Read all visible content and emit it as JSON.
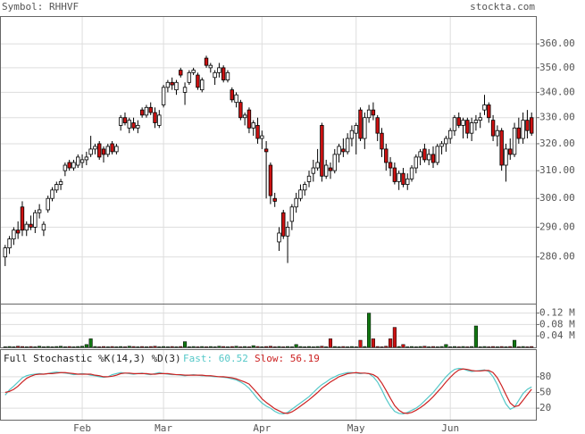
{
  "chart_data": {
    "type": "candlestick",
    "title": "Symbol: RHHVF",
    "source": "stockta.com",
    "log_scale": true,
    "grid": true,
    "up_color": "#ffffff",
    "down_color": "#cc1111",
    "xlim": [
      -1,
      124
    ],
    "xticks": [
      {
        "value": 18,
        "label": "Feb"
      },
      {
        "value": 37,
        "label": "Mar"
      },
      {
        "value": 60,
        "label": "Apr"
      },
      {
        "value": 82,
        "label": "May"
      },
      {
        "value": 104,
        "label": "Jun"
      }
    ],
    "ylim": [
      265,
      372
    ],
    "yticks": [
      {
        "value": 280,
        "label": "280.00"
      },
      {
        "value": 290,
        "label": "290.00"
      },
      {
        "value": 300,
        "label": "300.00"
      },
      {
        "value": 310,
        "label": "310.00"
      },
      {
        "value": 320,
        "label": "320.00"
      },
      {
        "value": 330,
        "label": "330.00"
      },
      {
        "value": 340,
        "label": "340.00"
      },
      {
        "value": 350,
        "label": "350.00"
      },
      {
        "value": 360,
        "label": "360.00"
      }
    ],
    "ohlc": [
      [
        280,
        284,
        277,
        283
      ],
      [
        283,
        287,
        281,
        286
      ],
      [
        286,
        290,
        284,
        289
      ],
      [
        289,
        292,
        286,
        288
      ],
      [
        297,
        299,
        287,
        289
      ],
      [
        289,
        292,
        287,
        291
      ],
      [
        291,
        294,
        289,
        290
      ],
      [
        290,
        296,
        288,
        295
      ],
      [
        295,
        298,
        293,
        296
      ],
      [
        289,
        292,
        287,
        291
      ],
      [
        296,
        301,
        295,
        300
      ],
      [
        300,
        304,
        299,
        303
      ],
      [
        303,
        306,
        302,
        305
      ],
      [
        305,
        307,
        303,
        306
      ],
      [
        310,
        313,
        308,
        312
      ],
      [
        313,
        314,
        310,
        311
      ],
      [
        311,
        314,
        310,
        313
      ],
      [
        312,
        316,
        311,
        315
      ],
      [
        313,
        316,
        311,
        314
      ],
      [
        314,
        317,
        312,
        315
      ],
      [
        316,
        323,
        315,
        318
      ],
      [
        318,
        320,
        316,
        319
      ],
      [
        320,
        321,
        314,
        315
      ],
      [
        318,
        319,
        313,
        316
      ],
      [
        316,
        320,
        315,
        319
      ],
      [
        320,
        321,
        316,
        317
      ],
      [
        317,
        320,
        316,
        319
      ],
      [
        327,
        331,
        325,
        330
      ],
      [
        330,
        332,
        327,
        328
      ],
      [
        326,
        330,
        324,
        329
      ],
      [
        328,
        330,
        325,
        326
      ],
      [
        326,
        329,
        324,
        327
      ],
      [
        333,
        334,
        330,
        331
      ],
      [
        331,
        335,
        330,
        334
      ],
      [
        334,
        336,
        331,
        332
      ],
      [
        332,
        334,
        326,
        328
      ],
      [
        327,
        333,
        326,
        331
      ],
      [
        335,
        343,
        334,
        342
      ],
      [
        342,
        345,
        340,
        344
      ],
      [
        344,
        346,
        341,
        343
      ],
      [
        341,
        345,
        339,
        344
      ],
      [
        349,
        350,
        346,
        347
      ],
      [
        340,
        344,
        335,
        342
      ],
      [
        344,
        349,
        343,
        348
      ],
      [
        348,
        350,
        347,
        349
      ],
      [
        347,
        348,
        341,
        342
      ],
      [
        341,
        346,
        340,
        345
      ],
      [
        354,
        355,
        350,
        351
      ],
      [
        350,
        352,
        348,
        351
      ],
      [
        346,
        349,
        343,
        348
      ],
      [
        348,
        352,
        346,
        350
      ],
      [
        350,
        351,
        344,
        345
      ],
      [
        345,
        349,
        344,
        348
      ],
      [
        341,
        342,
        336,
        337
      ],
      [
        336,
        340,
        334,
        339
      ],
      [
        336,
        337,
        329,
        330
      ],
      [
        330,
        332,
        327,
        331
      ],
      [
        333,
        334,
        324,
        326
      ],
      [
        326,
        329,
        323,
        328
      ],
      [
        327,
        330,
        320,
        322
      ],
      [
        322,
        325,
        318,
        323
      ],
      [
        318,
        321,
        300,
        317
      ],
      [
        312,
        313,
        298,
        301
      ],
      [
        300,
        302,
        297,
        299
      ],
      [
        285,
        290,
        282,
        288
      ],
      [
        295,
        296,
        286,
        287
      ],
      [
        287,
        292,
        278,
        290
      ],
      [
        292,
        298,
        289,
        297
      ],
      [
        297,
        302,
        295,
        300
      ],
      [
        300,
        305,
        299,
        303
      ],
      [
        303,
        306,
        301,
        305
      ],
      [
        306,
        310,
        304,
        308
      ],
      [
        309,
        314,
        306,
        311
      ],
      [
        311,
        318,
        310,
        313
      ],
      [
        327,
        328,
        306,
        308
      ],
      [
        308,
        314,
        307,
        312
      ],
      [
        311,
        313,
        307,
        310
      ],
      [
        310,
        318,
        309,
        316
      ],
      [
        316,
        320,
        313,
        319
      ],
      [
        318,
        322,
        315,
        317
      ],
      [
        317,
        324,
        316,
        322
      ],
      [
        322,
        327,
        319,
        325
      ],
      [
        324,
        328,
        316,
        327
      ],
      [
        333,
        334,
        321,
        322
      ],
      [
        322,
        332,
        318,
        330
      ],
      [
        330,
        335,
        328,
        333
      ],
      [
        333,
        336,
        329,
        331
      ],
      [
        330,
        331,
        321,
        324
      ],
      [
        324,
        326,
        315,
        318
      ],
      [
        318,
        320,
        310,
        313
      ],
      [
        313,
        315,
        308,
        311
      ],
      [
        311,
        313,
        305,
        306
      ],
      [
        306,
        310,
        303,
        309
      ],
      [
        309,
        311,
        304,
        305
      ],
      [
        305,
        309,
        303,
        307
      ],
      [
        307,
        312,
        306,
        311
      ],
      [
        311,
        316,
        309,
        315
      ],
      [
        315,
        318,
        312,
        317
      ],
      [
        318,
        320,
        313,
        314
      ],
      [
        314,
        318,
        312,
        316
      ],
      [
        316,
        319,
        311,
        313
      ],
      [
        313,
        320,
        312,
        319
      ],
      [
        319,
        321,
        316,
        320
      ],
      [
        320,
        323,
        317,
        322
      ],
      [
        322,
        326,
        320,
        325
      ],
      [
        325,
        331,
        323,
        330
      ],
      [
        330,
        332,
        326,
        327
      ],
      [
        327,
        330,
        322,
        329
      ],
      [
        329,
        330,
        322,
        324
      ],
      [
        324,
        330,
        321,
        328
      ],
      [
        328,
        331,
        325,
        329
      ],
      [
        329,
        332,
        326,
        330
      ],
      [
        333,
        339,
        331,
        335
      ],
      [
        335,
        336,
        328,
        330
      ],
      [
        329,
        331,
        321,
        323
      ],
      [
        323,
        327,
        319,
        325
      ],
      [
        325,
        326,
        310,
        312
      ],
      [
        312,
        320,
        306,
        318
      ],
      [
        318,
        322,
        314,
        316
      ],
      [
        316,
        328,
        315,
        326
      ],
      [
        326,
        330,
        320,
        322
      ],
      [
        322,
        332,
        320,
        329
      ],
      [
        329,
        333,
        322,
        325
      ],
      [
        330,
        332,
        323,
        324
      ]
    ],
    "volume": {
      "ylim": [
        0,
        0.15
      ],
      "yticks": [
        {
          "value": 0.04,
          "label": "0.04 M"
        },
        {
          "value": 0.08,
          "label": "0.08 M"
        },
        {
          "value": 0.12,
          "label": "0.12 M"
        }
      ],
      "up_color": "#117711",
      "down_color": "#cc1111",
      "values": [
        0.002,
        0.003,
        0.002,
        0.004,
        0.003,
        0.002,
        0.003,
        0.002,
        0.004,
        0.002,
        0.003,
        0.002,
        0.003,
        0.004,
        0.002,
        0.003,
        0.002,
        0.003,
        0.004,
        0.01,
        0.03,
        0.003,
        0.002,
        0.003,
        0.002,
        0.003,
        0.002,
        0.003,
        0.002,
        0.004,
        0.003,
        0.002,
        0.003,
        0.002,
        0.003,
        0.004,
        0.002,
        0.003,
        0.002,
        0.003,
        0.002,
        0.003,
        0.02,
        0.002,
        0.003,
        0.002,
        0.003,
        0.002,
        0.003,
        0.002,
        0.004,
        0.003,
        0.002,
        0.003,
        0.004,
        0.002,
        0.003,
        0.002,
        0.006,
        0.003,
        0.002,
        0.003,
        0.004,
        0.002,
        0.003,
        0.002,
        0.003,
        0.002,
        0.01,
        0.003,
        0.002,
        0.003,
        0.002,
        0.003,
        0.004,
        0.002,
        0.03,
        0.003,
        0.002,
        0.003,
        0.002,
        0.003,
        0.002,
        0.025,
        0.003,
        0.12,
        0.03,
        0.003,
        0.002,
        0.004,
        0.03,
        0.07,
        0.003,
        0.01,
        0.002,
        0.003,
        0.002,
        0.003,
        0.004,
        0.002,
        0.003,
        0.002,
        0.003,
        0.01,
        0.002,
        0.003,
        0.002,
        0.003,
        0.002,
        0.003,
        0.075,
        0.002,
        0.003,
        0.002,
        0.003,
        0.002,
        0.003,
        0.002,
        0.003,
        0.025,
        0.002,
        0.003,
        0.002,
        0.003
      ]
    },
    "stochastic": {
      "title": "Full Stochastic %K(14,3) %D(3)",
      "ylim": [
        -2,
        131
      ],
      "yticks": [
        20,
        50,
        80
      ],
      "series": [
        {
          "name": "Fast: 60.52",
          "color": "#55c8c8",
          "values": [
            45,
            55,
            62,
            70,
            78,
            82,
            84,
            85,
            86,
            85,
            86,
            88,
            89,
            88,
            87,
            86,
            84,
            85,
            86,
            85,
            83,
            82,
            80,
            79,
            80,
            84,
            86,
            88,
            87,
            86,
            85,
            86,
            87,
            85,
            84,
            86,
            88,
            86,
            85,
            84,
            84,
            83,
            82,
            83,
            84,
            83,
            82,
            82,
            81,
            80,
            80,
            79,
            78,
            76,
            74,
            70,
            65,
            58,
            48,
            38,
            30,
            24,
            20,
            14,
            10,
            9,
            12,
            18,
            24,
            30,
            36,
            42,
            50,
            58,
            65,
            70,
            76,
            80,
            84,
            86,
            88,
            88,
            87,
            86,
            87,
            86,
            80,
            70,
            55,
            38,
            24,
            14,
            10,
            9,
            12,
            16,
            20,
            26,
            34,
            42,
            50,
            60,
            70,
            80,
            88,
            94,
            96,
            95,
            92,
            90,
            91,
            92,
            93,
            90,
            80,
            65,
            45,
            28,
            18,
            22,
            35,
            48,
            56,
            60.52
          ]
        },
        {
          "name": "Slow: 56.19",
          "color": "#cc2222",
          "values": [
            50,
            52,
            56,
            62,
            70,
            77,
            81,
            84,
            85,
            85,
            86,
            86,
            87,
            88,
            88,
            87,
            86,
            85,
            85,
            85,
            85,
            83,
            82,
            80,
            80,
            81,
            83,
            86,
            87,
            87,
            86,
            86,
            86,
            86,
            85,
            85,
            86,
            86,
            86,
            85,
            84,
            84,
            83,
            83,
            83,
            83,
            83,
            82,
            82,
            81,
            80,
            80,
            79,
            78,
            76,
            73,
            70,
            66,
            57,
            48,
            38,
            31,
            25,
            19,
            15,
            11,
            10,
            13,
            18,
            24,
            30,
            36,
            43,
            50,
            58,
            64,
            70,
            75,
            80,
            83,
            86,
            87,
            88,
            87,
            87,
            86,
            84,
            79,
            68,
            54,
            39,
            25,
            16,
            11,
            10,
            12,
            16,
            21,
            27,
            34,
            42,
            51,
            60,
            70,
            79,
            87,
            93,
            95,
            94,
            92,
            91,
            91,
            92,
            92,
            88,
            78,
            63,
            46,
            30,
            23,
            25,
            35,
            46,
            56.19
          ]
        }
      ]
    }
  }
}
